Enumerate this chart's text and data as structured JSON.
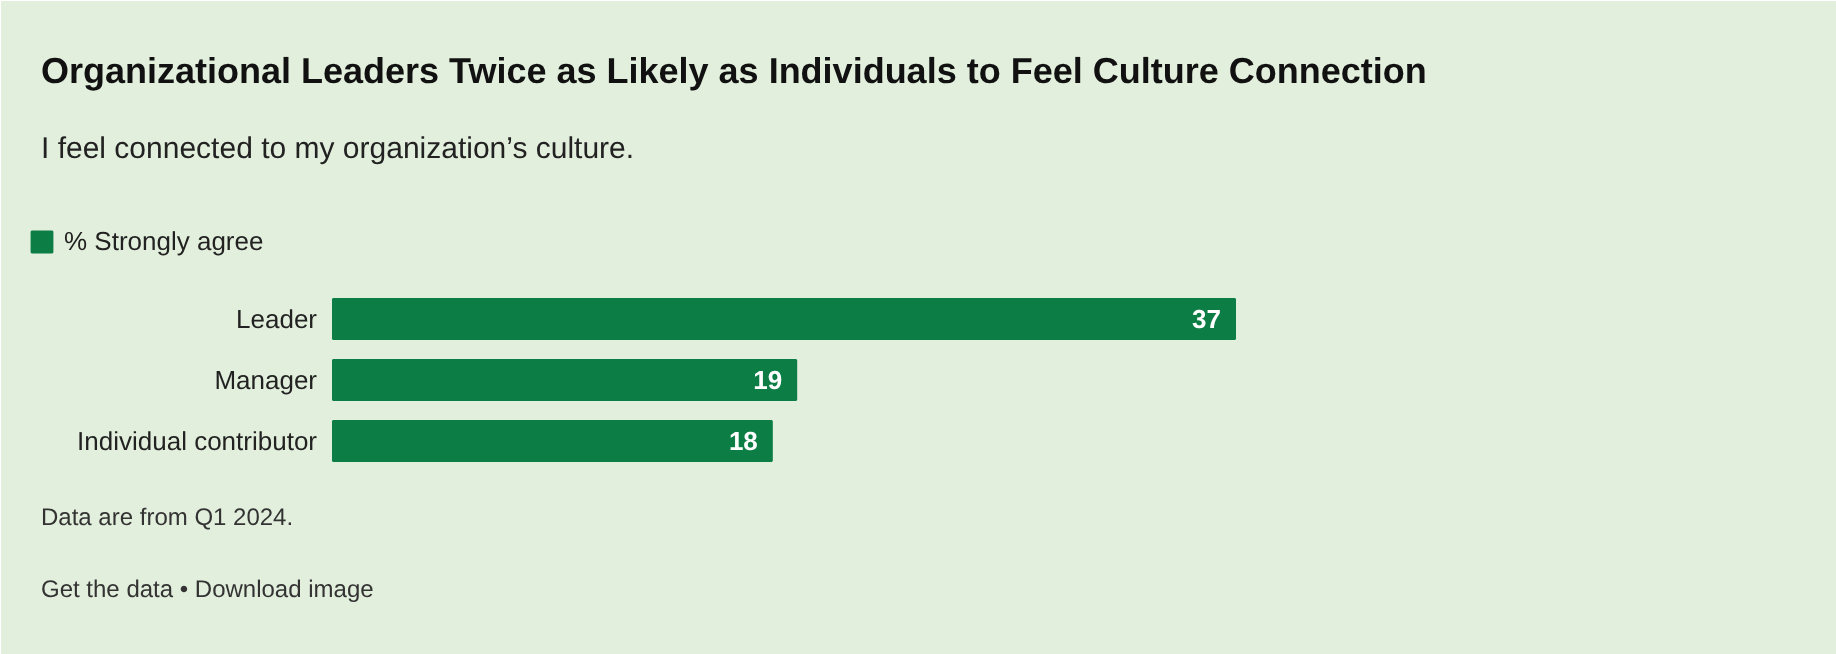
{
  "chart_data": {
    "type": "bar",
    "orientation": "horizontal",
    "title": "Organizational Leaders Twice as Likely as Individuals to Feel Culture Connection",
    "subtitle": "I feel connected to my organization’s culture.",
    "categories": [
      "Leader",
      "Manager",
      "Individual contributor"
    ],
    "series": [
      {
        "name": "% Strongly agree",
        "color": "#0b7d45",
        "values": [
          37,
          19,
          18
        ]
      }
    ],
    "data_labels": true,
    "legend": "top left",
    "annotations": [
      "Data are from Q1 2024.",
      "Get the data • Download image"
    ]
  }
}
